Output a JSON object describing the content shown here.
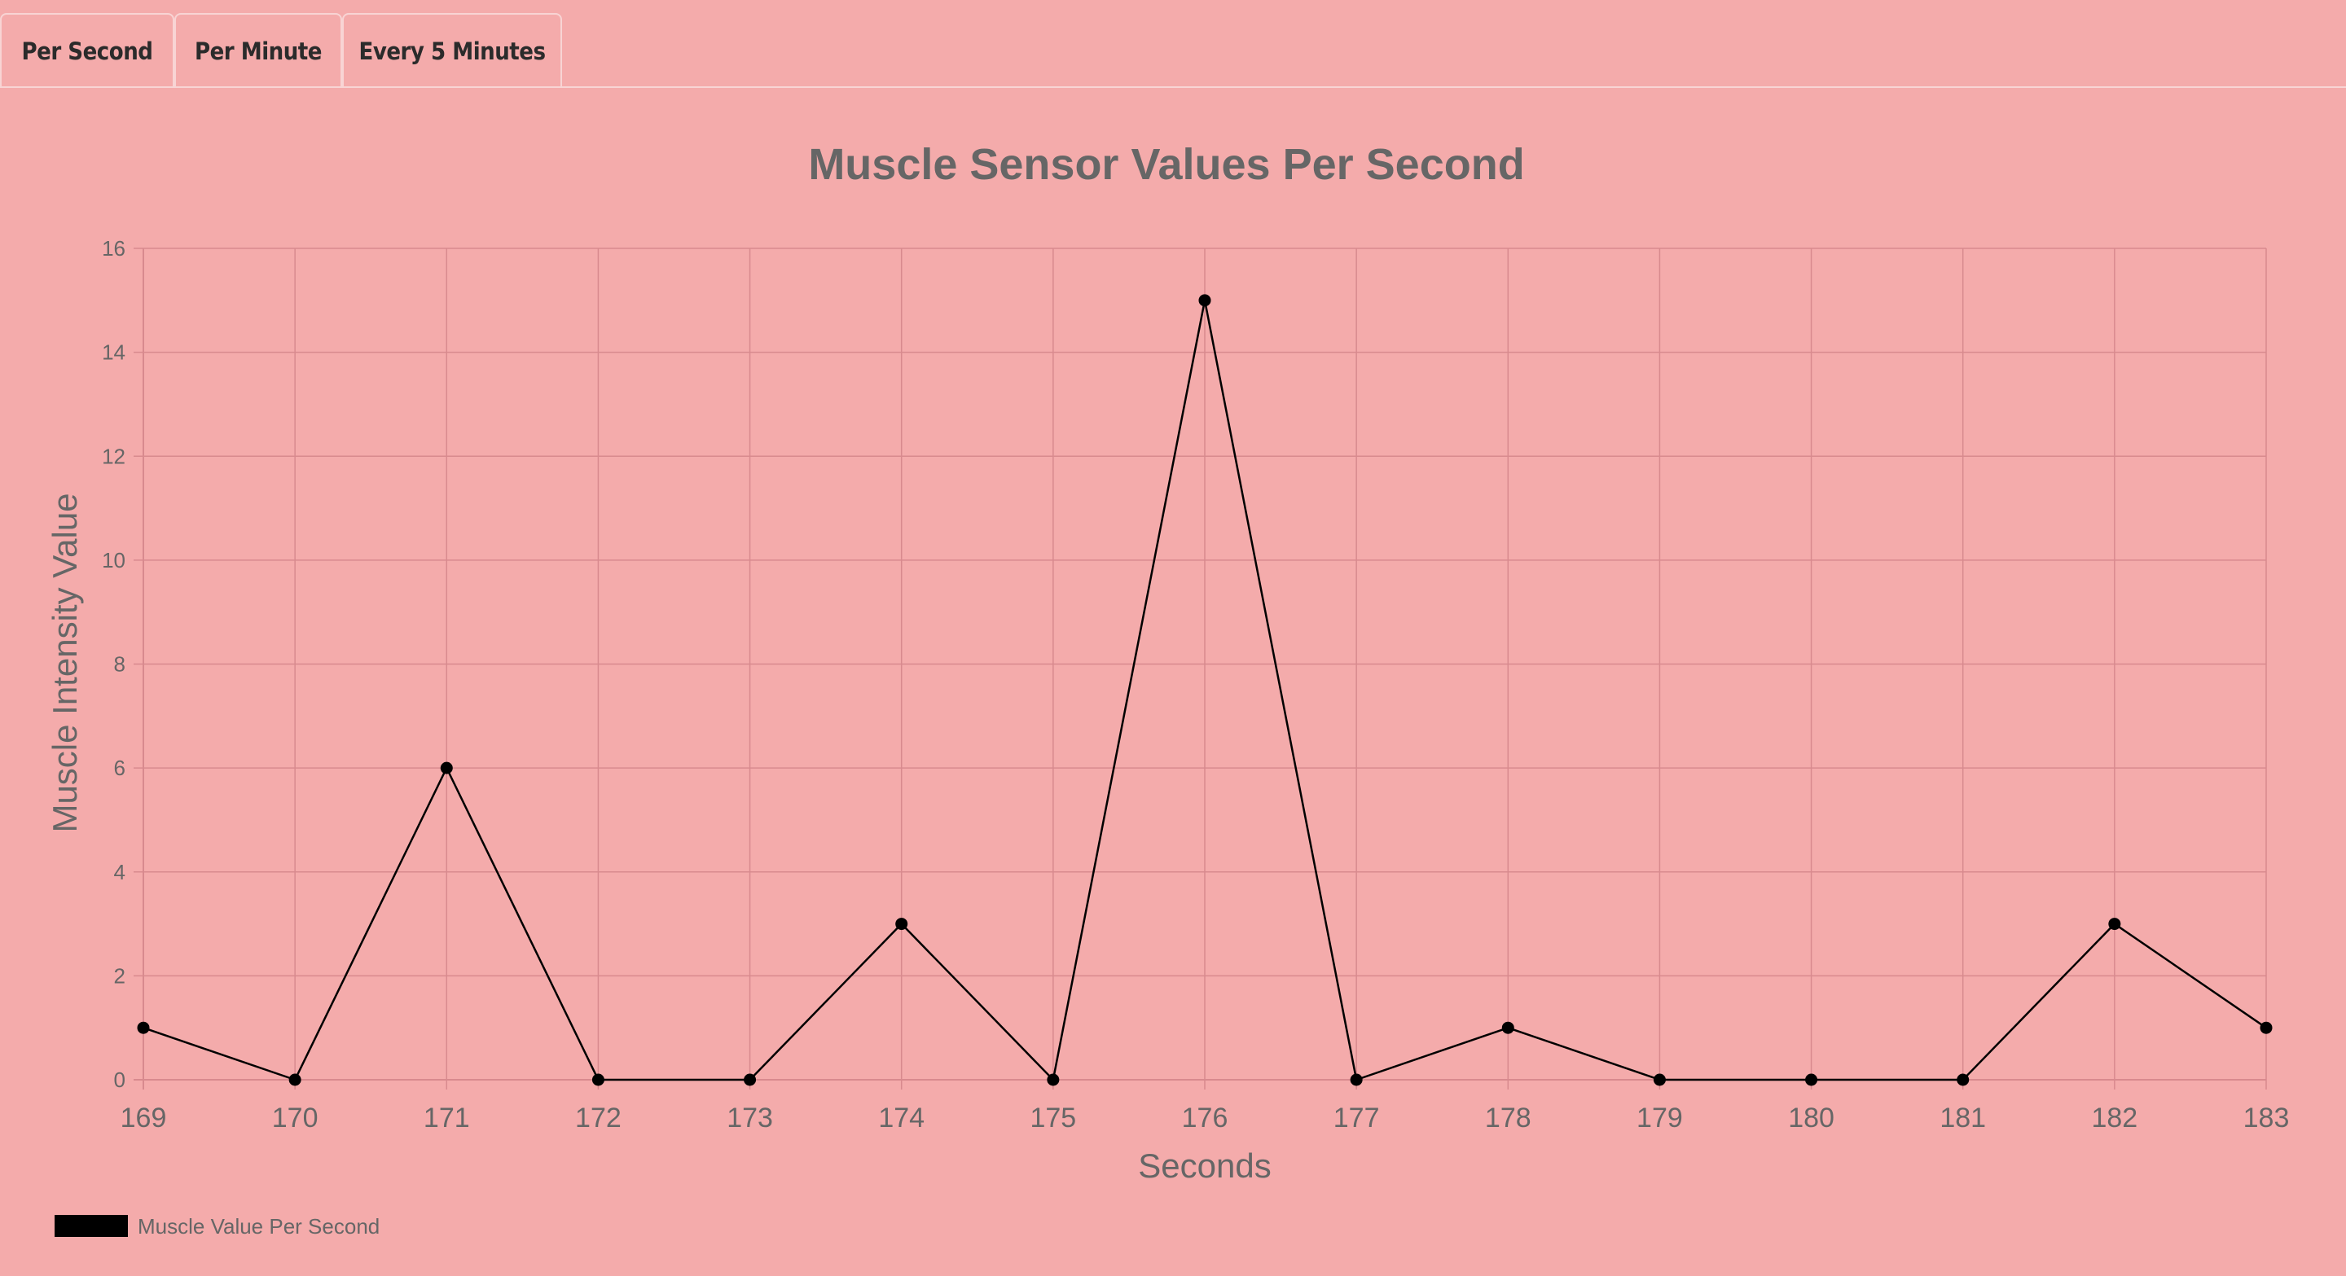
{
  "tabs": [
    {
      "label": "Per Second"
    },
    {
      "label": "Per Minute"
    },
    {
      "label": "Every 5 Minutes"
    }
  ],
  "colors": {
    "background": "#f4abab",
    "line": "#000000",
    "text": "#666666",
    "grid": "#d88a8e"
  },
  "chart_data": {
    "type": "line",
    "title": "Muscle Sensor Values Per Second",
    "xlabel": "Seconds",
    "ylabel": "Muscle Intensity Value",
    "x": [
      169,
      170,
      171,
      172,
      173,
      174,
      175,
      176,
      177,
      178,
      179,
      180,
      181,
      182,
      183
    ],
    "y_ticks": [
      0,
      2,
      4,
      6,
      8,
      10,
      12,
      14,
      16
    ],
    "ylim": [
      0,
      16
    ],
    "grid": true,
    "legend_position": "bottom-left",
    "series": [
      {
        "name": "Muscle Value Per Second",
        "values": [
          1,
          0,
          6,
          0,
          0,
          3,
          0,
          15,
          0,
          1,
          0,
          0,
          0,
          3,
          1
        ]
      }
    ]
  }
}
